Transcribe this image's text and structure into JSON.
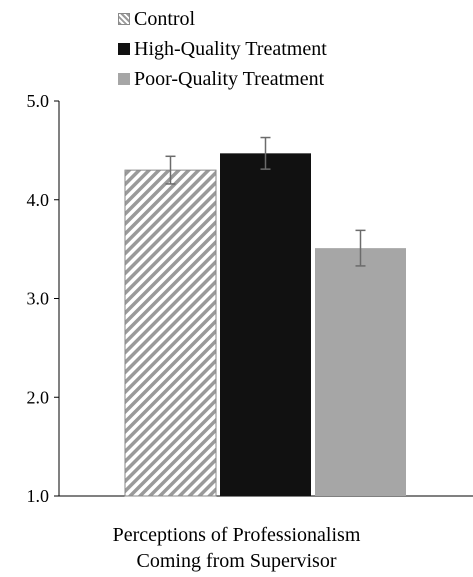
{
  "chart_data": {
    "type": "bar",
    "categories": [
      "Control",
      "High-Quality Treatment",
      "Poor-Quality Treatment"
    ],
    "values": [
      4.3,
      4.47,
      3.51
    ],
    "error": [
      0.14,
      0.16,
      0.18
    ],
    "colors": [
      "hatched-gray",
      "#111111",
      "#a6a6a6"
    ],
    "ylim": [
      1.0,
      5.0
    ],
    "yticks": [
      "1.0",
      "2.0",
      "3.0",
      "4.0",
      "5.0"
    ],
    "xlabel_lines": [
      "Perceptions of Professionalism",
      "Coming from Supervisor"
    ],
    "legend_placement": "top",
    "grid": false
  },
  "legend": {
    "items": [
      {
        "label": "Control",
        "swatch": "hatched-gray"
      },
      {
        "label": "High-Quality Treatment",
        "swatch": "#111111"
      },
      {
        "label": "Poor-Quality Treatment",
        "swatch": "#a6a6a6"
      }
    ]
  }
}
